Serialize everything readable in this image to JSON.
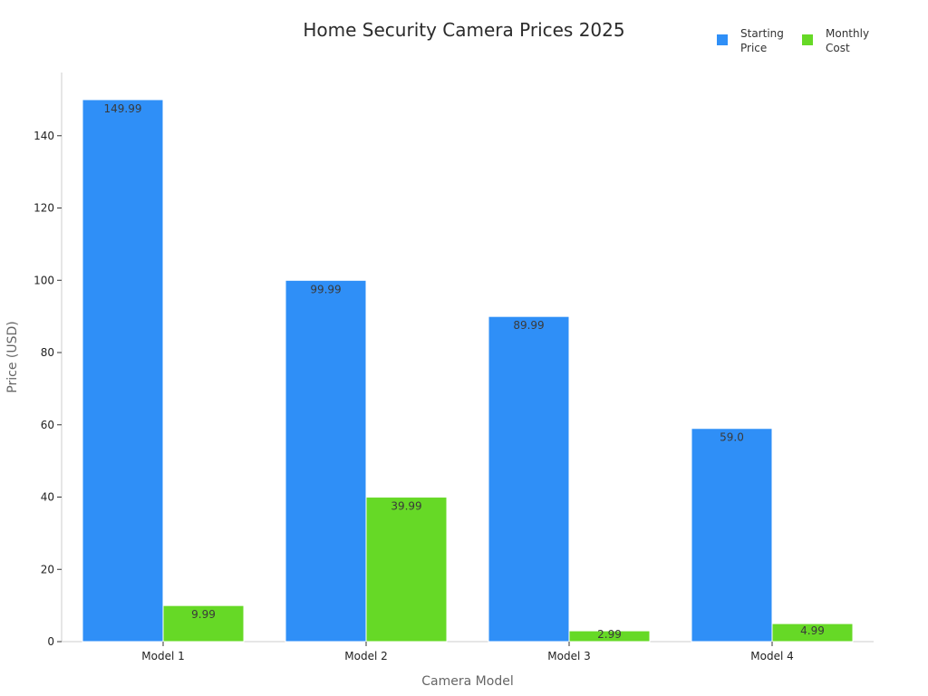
{
  "chart_data": {
    "type": "bar",
    "title": "Home Security Camera Prices 2025",
    "xlabel": "Camera Model",
    "ylabel": "Price (USD)",
    "categories": [
      "Model 1",
      "Model 2",
      "Model 3",
      "Model 4"
    ],
    "series": [
      {
        "name": "Starting Price",
        "legend_lines": [
          "Starting",
          "Price"
        ],
        "color": "#2f8ff7",
        "values": [
          149.99,
          99.99,
          89.99,
          59.0
        ],
        "labels": [
          "149.99",
          "99.99",
          "89.99",
          "59.0"
        ]
      },
      {
        "name": "Monthly Cost",
        "legend_lines": [
          "Monthly",
          "Cost"
        ],
        "color": "#66d926",
        "values": [
          9.99,
          39.99,
          2.99,
          4.99
        ],
        "labels": [
          "9.99",
          "39.99",
          "2.99",
          "4.99"
        ]
      }
    ],
    "ylim": [
      0,
      157.5
    ],
    "yticks": [
      0,
      20,
      40,
      60,
      80,
      100,
      120,
      140
    ],
    "grid": false,
    "legend_position": "top-right"
  }
}
